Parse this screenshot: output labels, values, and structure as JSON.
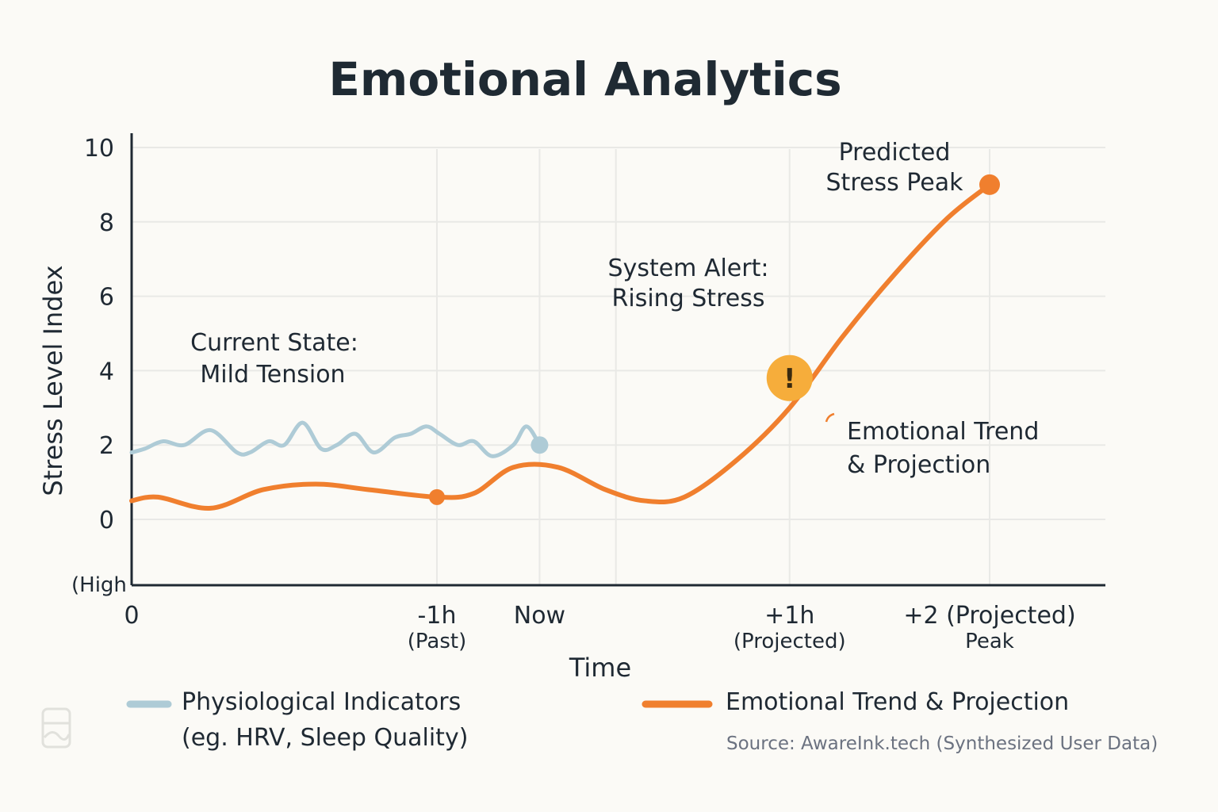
{
  "chart_data": {
    "type": "line",
    "title": "Emotional Analytics",
    "xlabel": "Time",
    "ylabel": "Stress Level Index",
    "y_extra_label": "(High",
    "xlim": [
      0,
      4
    ],
    "ylim": [
      -1.8,
      10
    ],
    "yticks": [
      10,
      8,
      6,
      4,
      2,
      0
    ],
    "xticks": [
      {
        "x": 0,
        "label": "0",
        "sub": ""
      },
      {
        "x": 1.16,
        "label": "-1h",
        "sub": "(Past)"
      },
      {
        "x": 1.55,
        "label": "Now",
        "sub": ""
      },
      {
        "x": 2.5,
        "label": "+1h",
        "sub": "(Projected)"
      },
      {
        "x": 3.26,
        "label": "+2 (Projected)",
        "sub": "Peak"
      }
    ],
    "grid": true,
    "series": [
      {
        "name": "Physiological Indicators",
        "color": "#aecbd6",
        "x": [
          0.0,
          0.05,
          0.12,
          0.2,
          0.3,
          0.4,
          0.45,
          0.52,
          0.58,
          0.65,
          0.72,
          0.78,
          0.85,
          0.92,
          1.0,
          1.06,
          1.12,
          1.17,
          1.24,
          1.3,
          1.37,
          1.45,
          1.5,
          1.55
        ],
        "values": [
          1.8,
          1.9,
          2.1,
          2.0,
          2.4,
          1.8,
          1.8,
          2.1,
          2.0,
          2.6,
          1.9,
          2.0,
          2.3,
          1.8,
          2.2,
          2.3,
          2.5,
          2.3,
          2.0,
          2.1,
          1.7,
          2.0,
          2.5,
          2.0
        ]
      },
      {
        "name": "Emotional Trend & Projection",
        "color": "#f07f2e",
        "x": [
          0.0,
          0.1,
          0.3,
          0.5,
          0.7,
          0.9,
          1.16,
          1.3,
          1.45,
          1.62,
          1.8,
          1.95,
          2.1,
          2.3,
          2.5,
          2.7,
          2.9,
          3.1,
          3.26
        ],
        "values": [
          0.5,
          0.6,
          0.3,
          0.8,
          0.95,
          0.8,
          0.6,
          0.7,
          1.4,
          1.4,
          0.8,
          0.5,
          0.6,
          1.6,
          3.0,
          4.9,
          6.6,
          8.1,
          9.0
        ]
      }
    ],
    "markers": [
      {
        "series": 1,
        "x": 1.16,
        "y": 0.6
      },
      {
        "series": 0,
        "x": 1.55,
        "y": 2.0
      },
      {
        "series": 1,
        "x": 3.26,
        "y": 9.0
      }
    ],
    "alert": {
      "x": 2.5,
      "y": 3.8,
      "symbol": "!",
      "color": "#f6ad3b"
    },
    "annotations": [
      {
        "lines": [
          "Current State:",
          "Mild Tension"
        ]
      },
      {
        "lines": [
          "System Alert:",
          "Rising Stress"
        ]
      },
      {
        "lines": [
          "Predicted",
          "Stress Peak"
        ]
      },
      {
        "lines": [
          "Emotional Trend",
          "& Projection"
        ]
      }
    ],
    "legend": [
      {
        "lines": [
          "Physiological Indicators",
          "(eg. HRV, Sleep Quality)"
        ],
        "color": "#aecbd6"
      },
      {
        "lines": [
          "Emotional Trend & Projection"
        ],
        "color": "#f07f2e"
      }
    ],
    "legend_position": "bottom",
    "source": "Source: AwareInk.tech (Synthesized User Data)"
  }
}
